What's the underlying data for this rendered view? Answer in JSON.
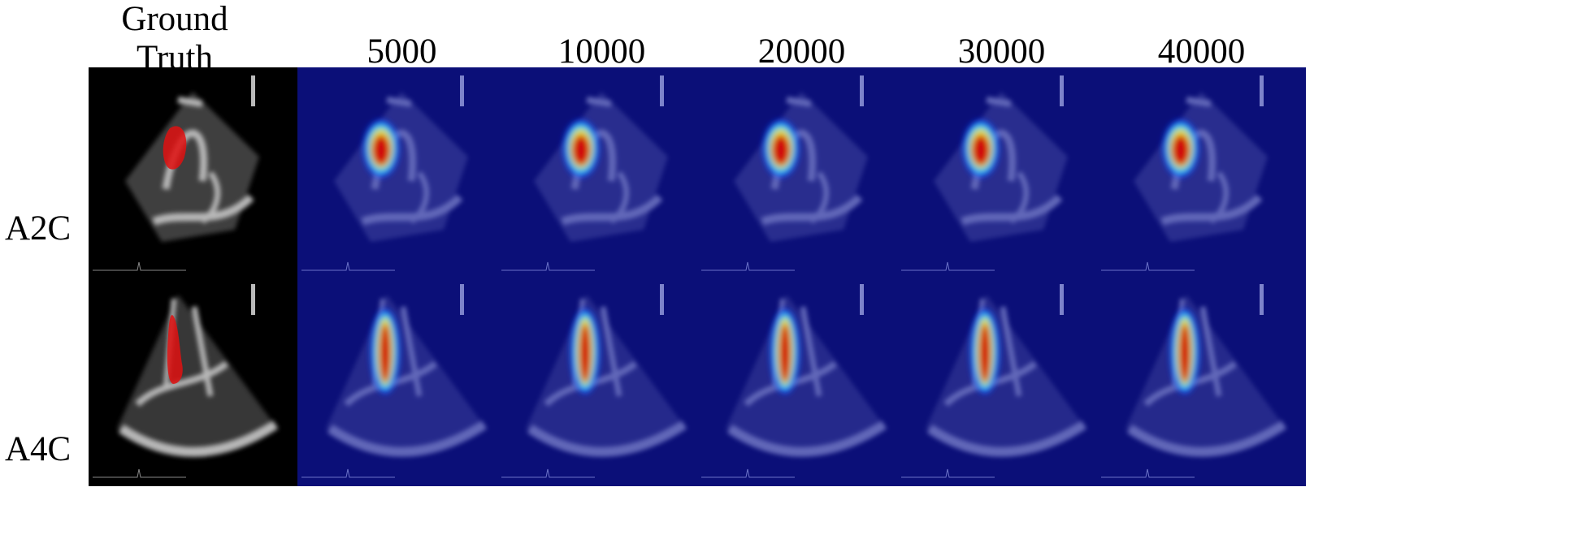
{
  "columns": [
    {
      "header": "Ground Truth",
      "kind": "ground-truth"
    },
    {
      "header": "5000",
      "kind": "heatmap"
    },
    {
      "header": "10000",
      "kind": "heatmap"
    },
    {
      "header": "20000",
      "kind": "heatmap"
    },
    {
      "header": "30000",
      "kind": "heatmap"
    },
    {
      "header": "40000",
      "kind": "heatmap"
    }
  ],
  "ground_truth_header_lines": [
    "Ground",
    "Truth"
  ],
  "rows": [
    {
      "label": "A2C",
      "view": "apical two-chamber"
    },
    {
      "label": "A4C",
      "view": "apical four-chamber"
    }
  ],
  "colors": {
    "heatmap_background": "#0b0f78",
    "ground_truth_mask": "#e01010",
    "ultrasound_gray": "#d8d8d8"
  }
}
